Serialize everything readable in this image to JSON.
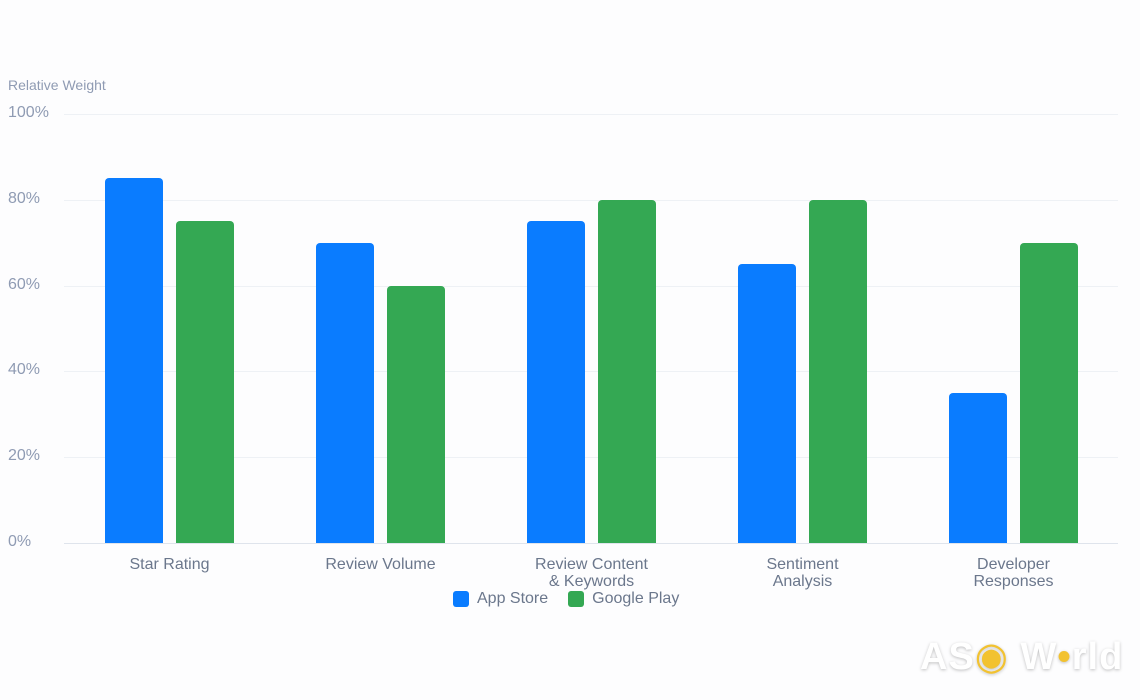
{
  "chart_data": {
    "type": "bar",
    "title": "",
    "ylabel": "Relative Weight",
    "xlabel": "",
    "ylim": [
      0,
      100
    ],
    "yticks": [
      "0%",
      "20%",
      "40%",
      "60%",
      "80%",
      "100%"
    ],
    "categories": [
      "Star Rating",
      "Review Volume",
      "Review Content & Keywords",
      "Sentiment Analysis",
      "Developer Responses"
    ],
    "series": [
      {
        "name": "App Store",
        "color": "#0a7cff",
        "values": [
          85,
          70,
          75,
          65,
          35
        ]
      },
      {
        "name": "Google Play",
        "color": "#34a853",
        "values": [
          75,
          60,
          80,
          80,
          70
        ]
      }
    ],
    "grid": true,
    "legend_position": "bottom"
  },
  "labels": {
    "ylabel": "Relative Weight",
    "ticks": [
      "100%",
      "80%",
      "60%",
      "40%",
      "20%",
      "0%"
    ],
    "cat_lines": [
      [
        "Star Rating"
      ],
      [
        "Review Volume"
      ],
      [
        "Review Content",
        "& Keywords"
      ],
      [
        "Sentiment",
        "Analysis"
      ],
      [
        "Developer",
        "Responses"
      ]
    ],
    "legend": [
      "App Store",
      "Google Play"
    ]
  },
  "watermark": "ASO World"
}
